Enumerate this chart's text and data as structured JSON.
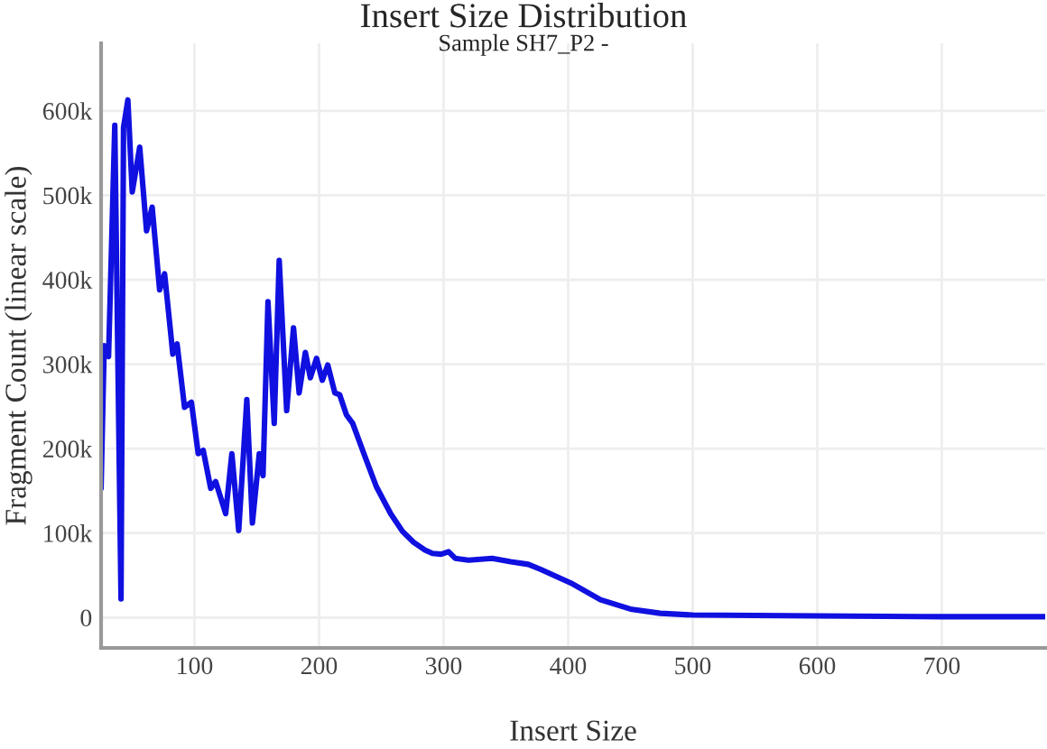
{
  "chart_data": {
    "type": "line",
    "title": "Insert Size Distribution",
    "subtitle": "Sample SH7_P2 -",
    "xlabel": "Insert Size",
    "ylabel": "Fragment Count (linear scale)",
    "series": [
      {
        "color": "#1010e0",
        "x": [
          25,
          27.5,
          31,
          36,
          41,
          43,
          46.5,
          50,
          56,
          61.5,
          66,
          72,
          76,
          82.6,
          86,
          92,
          97.5,
          103,
          107,
          113,
          117,
          125,
          130,
          135.5,
          142,
          146.5,
          152,
          155,
          159,
          164,
          168,
          174,
          179.5,
          184,
          189,
          193,
          198,
          202.6,
          207,
          212.7,
          216.5,
          222,
          227,
          236,
          246,
          257.5,
          267,
          276,
          285,
          291,
          298,
          304,
          309.5,
          320,
          339,
          354,
          368,
          378,
          402,
          426,
          450,
          474,
          500,
          600,
          700,
          783
        ],
        "values": [
          153000,
          322000,
          309000,
          583000,
          22000,
          580000,
          613000,
          504000,
          557000,
          458000,
          486000,
          388000,
          407000,
          312000,
          324000,
          249000,
          255000,
          194000,
          198000,
          153000,
          161000,
          123000,
          194000,
          103000,
          258000,
          112000,
          194000,
          168000,
          374000,
          230000,
          423000,
          245000,
          343000,
          266000,
          314000,
          284000,
          307000,
          281000,
          299000,
          266000,
          264000,
          240000,
          230000,
          194000,
          155000,
          123000,
          102000,
          89000,
          80000,
          76000,
          75000,
          78000,
          70000,
          68000,
          70000,
          66000,
          63000,
          57000,
          41000,
          21000,
          10000,
          5000,
          3000,
          2000,
          1000,
          1000
        ]
      }
    ],
    "xlim": [
      25,
      783
    ],
    "ylim": [
      -36000,
      680000
    ],
    "xticks": [
      100,
      200,
      300,
      400,
      500,
      600,
      700
    ],
    "yticks": [
      {
        "value": 0,
        "label": "0"
      },
      {
        "value": 100000,
        "label": "100k"
      },
      {
        "value": 200000,
        "label": "200k"
      },
      {
        "value": 300000,
        "label": "300k"
      },
      {
        "value": 400000,
        "label": "400k"
      },
      {
        "value": 500000,
        "label": "500k"
      },
      {
        "value": 600000,
        "label": "600k"
      }
    ],
    "grid": true,
    "line_style": "solid",
    "marker": "none"
  }
}
